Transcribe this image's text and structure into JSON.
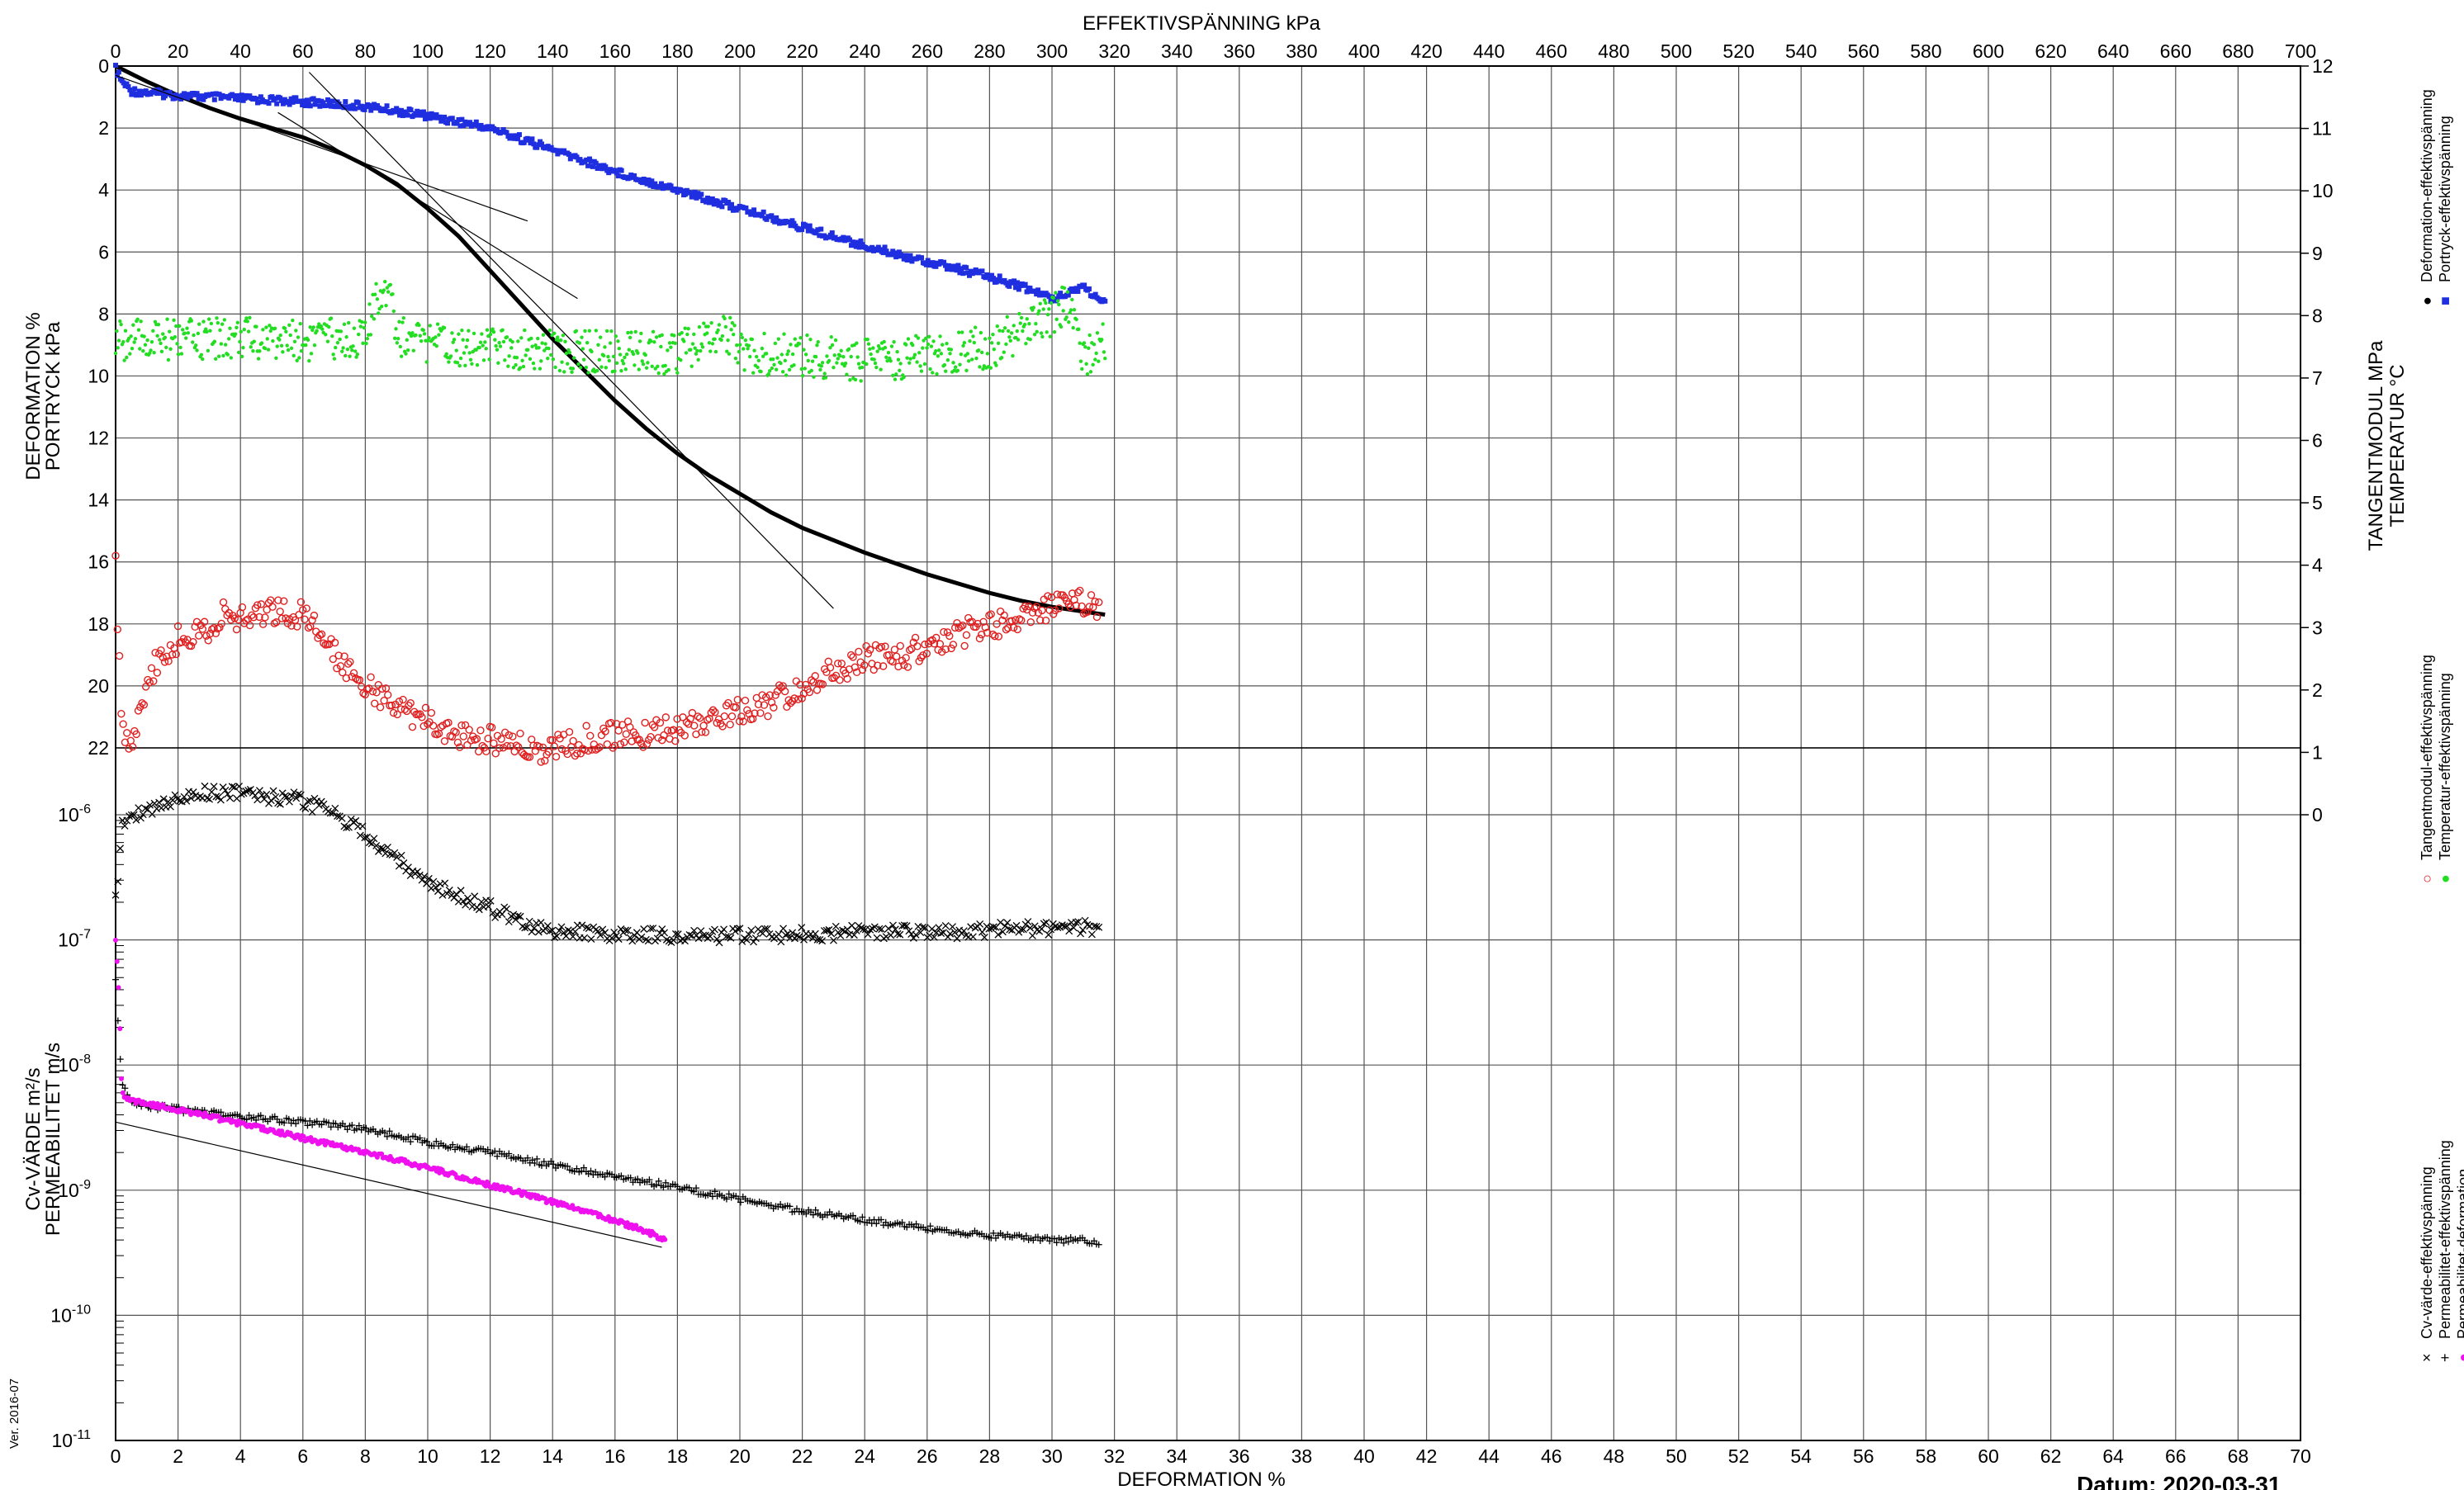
{
  "chart_data": {
    "type": "scatter",
    "top_axis": {
      "label": "EFFEKTIVSPÄNNING  kPa",
      "range": [
        0,
        700
      ],
      "ticks": [
        0,
        20,
        40,
        60,
        80,
        100,
        120,
        140,
        160,
        180,
        200,
        220,
        240,
        260,
        280,
        300,
        320,
        340,
        360,
        380,
        400,
        420,
        440,
        460,
        480,
        500,
        520,
        540,
        560,
        580,
        600,
        620,
        640,
        660,
        680,
        700
      ]
    },
    "bottom_axis": {
      "label": "DEFORMATION  %",
      "range": [
        0,
        70
      ],
      "ticks": [
        0,
        2,
        4,
        6,
        8,
        10,
        12,
        14,
        16,
        18,
        20,
        22,
        24,
        26,
        28,
        30,
        32,
        34,
        36,
        38,
        40,
        42,
        44,
        46,
        48,
        50,
        52,
        54,
        56,
        58,
        60,
        62,
        64,
        66,
        68,
        70
      ]
    },
    "left_axis_upper": {
      "label_line1": "DEFORMATION  %",
      "label_line2": "PORTRYCK  kPa",
      "range": [
        0,
        22
      ],
      "ticks": [
        0,
        2,
        4,
        6,
        8,
        10,
        12,
        14,
        16,
        18,
        20,
        22
      ]
    },
    "left_axis_lower": {
      "label_line1": "Cv-VÄRDE  m²/s",
      "label_line2": "PERMEABILITET  m/s",
      "scale": "log",
      "range": [
        1e-11,
        1e-06
      ],
      "tick_bases": [
        "10",
        "10",
        "10",
        "10",
        "10",
        "10"
      ],
      "tick_exponents": [
        "-6",
        "-7",
        "-8",
        "-9",
        "-10",
        "-11"
      ]
    },
    "right_axis": {
      "label_line1": "TANGENTMODUL MPa",
      "label_line2": "TEMPERATUR °C",
      "range": [
        0,
        12
      ],
      "ticks": [
        12,
        11,
        10,
        9,
        8,
        7,
        6,
        5,
        4,
        3,
        2,
        1,
        0
      ]
    },
    "legend_groups": [
      {
        "entries": [
          {
            "label": "Deformation-effektivspänning",
            "marker": "●",
            "color": "#000000"
          },
          {
            "label": "Portryck-effektivspänning",
            "marker": "■",
            "color": "#1f2fe0"
          }
        ]
      },
      {
        "entries": [
          {
            "label": "Tangentmodul-effektivspänning",
            "marker": "○",
            "color": "#e02020"
          },
          {
            "label": "Temperatur-effektivspänning",
            "marker": "●",
            "color": "#22dd22"
          }
        ]
      },
      {
        "entries": [
          {
            "label": "Cv-värde-effektivspänning",
            "marker": "×",
            "color": "#000000"
          },
          {
            "label": "Permeabilitet-effektivspänning",
            "marker": "+",
            "color": "#000000"
          },
          {
            "label": "Permeabilitet-deformation",
            "marker": "●",
            "color": "#ee11ee"
          }
        ]
      }
    ],
    "series": [
      {
        "name": "Deformation-effektivspänning",
        "axis": "top-kPa / left-%",
        "color": "#000000",
        "x": [
          0,
          10,
          20,
          30,
          40,
          50,
          60,
          70,
          80,
          90,
          100,
          110,
          120,
          130,
          140,
          150,
          160,
          170,
          180,
          190,
          200,
          210,
          220,
          230,
          240,
          250,
          260,
          270,
          280,
          290,
          300,
          310,
          317
        ],
        "y": [
          0,
          0.5,
          0.95,
          1.35,
          1.7,
          2.0,
          2.3,
          2.7,
          3.2,
          3.8,
          4.6,
          5.5,
          6.6,
          7.7,
          8.8,
          9.8,
          10.8,
          11.7,
          12.5,
          13.2,
          13.8,
          14.4,
          14.9,
          15.3,
          15.7,
          16.05,
          16.4,
          16.7,
          17.0,
          17.25,
          17.45,
          17.6,
          17.7
        ]
      },
      {
        "name": "Portryck-effektivspänning",
        "axis": "top-kPa / left-kPa",
        "color": "#1f2fe0",
        "x": [
          0,
          2,
          5,
          10,
          20,
          40,
          60,
          80,
          100,
          120,
          140,
          160,
          180,
          200,
          220,
          240,
          260,
          280,
          290,
          300,
          305,
          310,
          317
        ],
        "y": [
          0.1,
          0.5,
          0.8,
          0.85,
          0.95,
          1.05,
          1.15,
          1.3,
          1.6,
          2.0,
          2.7,
          3.4,
          4.0,
          4.6,
          5.2,
          5.8,
          6.3,
          6.8,
          7.1,
          7.5,
          7.3,
          7.1,
          7.7
        ]
      },
      {
        "name": "Tangentmodul-effektivspänning",
        "axis": "top-kPa / right-MPa",
        "color": "#e02020",
        "x": [
          0,
          2,
          5,
          10,
          15,
          20,
          30,
          35,
          40,
          50,
          60,
          70,
          80,
          90,
          100,
          110,
          120,
          130,
          140,
          150,
          160,
          170,
          180,
          190,
          200,
          210,
          220,
          230,
          240,
          250,
          260,
          270,
          280,
          290,
          300,
          310,
          315
        ],
        "y": [
          4,
          1.3,
          1.2,
          2.1,
          2.6,
          2.8,
          3.0,
          3.2,
          3.1,
          3.3,
          3.2,
          2.6,
          2.1,
          1.7,
          1.5,
          1.3,
          1.2,
          1.1,
          1.05,
          1.2,
          1.3,
          1.3,
          1.4,
          1.5,
          1.7,
          1.8,
          2.0,
          2.3,
          2.5,
          2.5,
          2.7,
          2.9,
          3.0,
          3.2,
          3.3,
          3.4,
          3.3
        ]
      },
      {
        "name": "Temperatur-effektivspänning",
        "axis": "top-kPa / right-°C",
        "color": "#22dd22",
        "x": [
          0,
          20,
          40,
          60,
          80,
          85,
          88,
          90,
          100,
          120,
          140,
          160,
          180,
          195,
          200,
          220,
          240,
          260,
          280,
          300,
          305,
          310,
          317
        ],
        "y": [
          7.6,
          7.6,
          7.65,
          7.6,
          7.65,
          8.4,
          8.6,
          7.7,
          7.55,
          7.5,
          7.45,
          7.4,
          7.4,
          7.8,
          7.4,
          7.35,
          7.3,
          7.35,
          7.5,
          8.0,
          8.2,
          7.3,
          7.6
        ]
      },
      {
        "name": "Cv-värde-effektivspänning",
        "axis": "top-kPa / left-log",
        "color": "#000000",
        "x": [
          0,
          2,
          5,
          10,
          15,
          20,
          30,
          40,
          50,
          60,
          70,
          80,
          90,
          100,
          110,
          120,
          130,
          140,
          150,
          160,
          170,
          180,
          190,
          200,
          220,
          240,
          260,
          280,
          300,
          310,
          315
        ],
        "y": [
          2e-07,
          8e-07,
          1e-06,
          1.05e-06,
          1.2e-06,
          1.4e-06,
          1.5e-06,
          1.5e-06,
          1.4e-06,
          1.3e-06,
          1e-06,
          7e-07,
          4.5e-07,
          3e-07,
          2.2e-07,
          1.8e-07,
          1.4e-07,
          1.2e-07,
          1.15e-07,
          1.1e-07,
          1.1e-07,
          1.05e-07,
          1.05e-07,
          1.1e-07,
          1.1e-07,
          1.15e-07,
          1.15e-07,
          1.2e-07,
          1.25e-07,
          1.25e-07,
          1.2e-07
        ]
      },
      {
        "name": "Permeabilitet-effektivspänning",
        "axis": "top-kPa / left-log",
        "color": "#000000",
        "x": [
          0,
          2,
          5,
          10,
          20,
          40,
          60,
          80,
          88,
          100,
          120,
          140,
          160,
          180,
          200,
          220,
          240,
          260,
          280,
          300,
          310,
          315
        ],
        "y": [
          5e-08,
          7e-09,
          5e-09,
          4.7e-09,
          4.4e-09,
          3.9e-09,
          3.5e-09,
          3.1e-09,
          2.8e-09,
          2.4e-09,
          2e-09,
          1.6e-09,
          1.3e-09,
          1.05e-09,
          8.5e-10,
          6.8e-10,
          5.8e-10,
          5e-10,
          4.4e-10,
          4e-10,
          4e-10,
          3.7e-10
        ]
      },
      {
        "name": "Permeabilitet-deformation",
        "axis": "bottom-% / left-log",
        "color": "#ee11ee",
        "x": [
          0,
          0.1,
          0.2,
          0.5,
          1,
          2,
          3,
          4,
          5,
          6,
          7,
          8,
          9,
          10,
          11,
          12,
          13,
          14,
          15,
          16,
          17,
          17.6
        ],
        "y": [
          1e-07,
          4e-08,
          6e-09,
          5.2e-09,
          4.9e-09,
          4.4e-09,
          3.9e-09,
          3.4e-09,
          3e-09,
          2.6e-09,
          2.3e-09,
          2e-09,
          1.75e-09,
          1.5e-09,
          1.3e-09,
          1.1e-09,
          9.5e-10,
          8e-10,
          6.8e-10,
          5.7e-10,
          4.7e-10,
          4e-10
        ]
      }
    ],
    "tangent_lines": [
      {
        "from_kPa": [
          0,
          0.3
        ],
        "to_kPa": [
          132,
          5.0
        ]
      },
      {
        "from_kPa": [
          52,
          1.5
        ],
        "to_kPa": [
          148,
          7.5
        ]
      },
      {
        "from_kPa": [
          62,
          0.2
        ],
        "to_kPa": [
          230,
          17.5
        ]
      }
    ],
    "reference_line": {
      "from_pct": [
        0,
        3.5e-09
      ],
      "to_pct": [
        17.5,
        3.5e-10
      ]
    },
    "grid": true
  },
  "footer": {
    "version": "Ver. 2016-07",
    "date": "Datum: 2020-03-31"
  }
}
